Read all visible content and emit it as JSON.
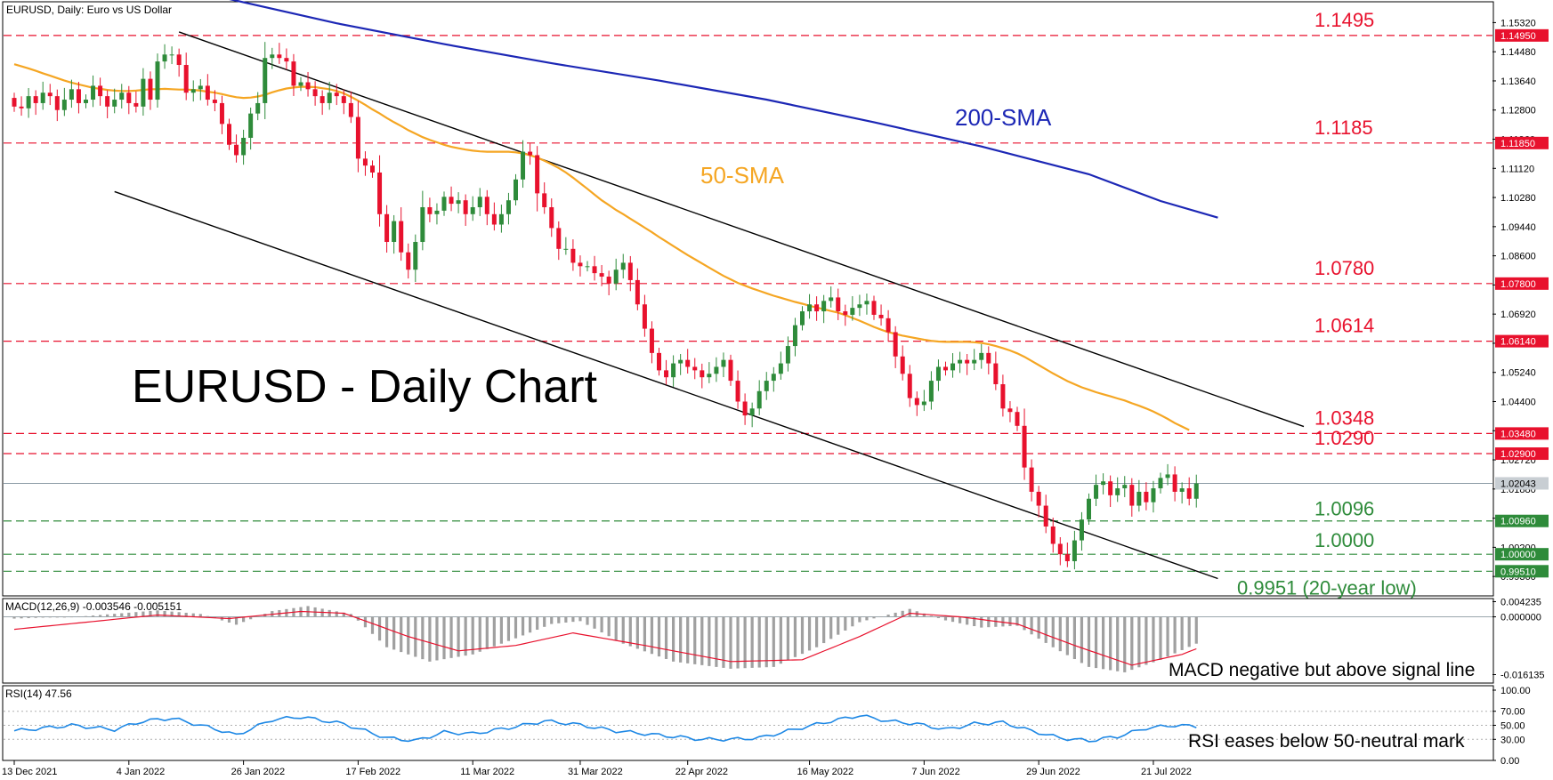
{
  "header": {
    "symbol_line": "EURUSD, Daily:  Euro vs US Dollar"
  },
  "colors": {
    "bull": "#2e8b3a",
    "bear": "#e8112d",
    "sma50": "#f5a623",
    "sma200": "#1c27b5",
    "level_red": "#e8112d",
    "level_green": "#2e8b3a",
    "macd_hist": "#a0a0a0",
    "macd_signal": "#e8112d",
    "rsi": "#1e88e5",
    "text": "#000000"
  },
  "chart_data": [
    {
      "type": "candlestick",
      "panel": "price",
      "title": "EURUSD - Daily Chart",
      "ylim": [
        0.988,
        1.1592
      ],
      "price_ticks": [
        "1.15320",
        "1.14480",
        "1.13640",
        "1.12800",
        "1.11960",
        "1.11120",
        "1.10280",
        "1.09440",
        "1.08600",
        "1.07760",
        "1.06920",
        "1.06080",
        "1.05240",
        "1.04400",
        "1.03560",
        "1.02720",
        "1.01880",
        "1.01040",
        "1.00200",
        "0.99360"
      ],
      "x_ticks": [
        {
          "label": "13 Dec 2021",
          "i": 0
        },
        {
          "label": "4 Jan 2022",
          "i": 16
        },
        {
          "label": "26 Jan 2022",
          "i": 32
        },
        {
          "label": "17 Feb 2022",
          "i": 48
        },
        {
          "label": "11 Mar 2022",
          "i": 64
        },
        {
          "label": "31 Mar 2022",
          "i": 79
        },
        {
          "label": "22 Apr 2022",
          "i": 94
        },
        {
          "label": "16 May 2022",
          "i": 111
        },
        {
          "label": "7 Jun 2022",
          "i": 127
        },
        {
          "label": "29 Jun 2022",
          "i": 143
        },
        {
          "label": "21 Jul 2022",
          "i": 159
        }
      ],
      "candles_close": [
        1.129,
        1.1285,
        1.132,
        1.13,
        1.133,
        1.132,
        1.128,
        1.131,
        1.134,
        1.13,
        1.131,
        1.135,
        1.132,
        1.129,
        1.131,
        1.133,
        1.13,
        1.129,
        1.137,
        1.131,
        1.142,
        1.144,
        1.144,
        1.141,
        1.133,
        1.134,
        1.135,
        1.131,
        1.13,
        1.124,
        1.118,
        1.115,
        1.12,
        1.127,
        1.13,
        1.143,
        1.144,
        1.143,
        1.142,
        1.135,
        1.136,
        1.134,
        1.132,
        1.13,
        1.133,
        1.132,
        1.13,
        1.126,
        1.114,
        1.112,
        1.11,
        1.098,
        1.09,
        1.096,
        1.087,
        1.082,
        1.09,
        1.1,
        1.098,
        1.099,
        1.103,
        1.101,
        1.102,
        1.098,
        1.1,
        1.103,
        1.098,
        1.095,
        1.098,
        1.102,
        1.108,
        1.116,
        1.115,
        1.104,
        1.1,
        1.094,
        1.088,
        1.088,
        1.084,
        1.083,
        1.083,
        1.081,
        1.08,
        1.078,
        1.082,
        1.084,
        1.079,
        1.072,
        1.065,
        1.058,
        1.053,
        1.051,
        1.055,
        1.056,
        1.054,
        1.053,
        1.051,
        1.052,
        1.054,
        1.056,
        1.05,
        1.044,
        1.04,
        1.042,
        1.047,
        1.05,
        1.052,
        1.055,
        1.06,
        1.066,
        1.07,
        1.072,
        1.07,
        1.073,
        1.074,
        1.07,
        1.069,
        1.071,
        1.072,
        1.073,
        1.069,
        1.068,
        1.064,
        1.057,
        1.052,
        1.045,
        1.043,
        1.044,
        1.05,
        1.054,
        1.053,
        1.055,
        1.056,
        1.055,
        1.056,
        1.058,
        1.055,
        1.049,
        1.042,
        1.041,
        1.037,
        1.025,
        1.018,
        1.014,
        1.008,
        1.003,
        1.0,
        0.998,
        1.004,
        1.01,
        1.016,
        1.02,
        1.021,
        1.017,
        1.019,
        1.02,
        1.014,
        1.018,
        1.015,
        1.019,
        1.022,
        1.023,
        1.018,
        1.019,
        1.016,
        1.0204
      ],
      "sma50_y": [
        1.1412,
        1.1406,
        1.14,
        1.1393,
        1.1386,
        1.1379,
        1.1372,
        1.1365,
        1.1359,
        1.1354,
        1.1349,
        1.1344,
        1.1341,
        1.1338,
        1.1336,
        1.1335,
        1.1335,
        1.1336,
        1.1338,
        1.134,
        1.134,
        1.1341,
        1.134,
        1.1339,
        1.1339,
        1.1338,
        1.1336,
        1.1333,
        1.133,
        1.1326,
        1.1321,
        1.1317,
        1.1315,
        1.1316,
        1.1319,
        1.1324,
        1.1331,
        1.1337,
        1.1342,
        1.1345,
        1.1347,
        1.1347,
        1.1346,
        1.1343,
        1.134,
        1.1335,
        1.1328,
        1.1318,
        1.1307,
        1.1295,
        1.1282,
        1.127,
        1.1257,
        1.1245,
        1.1234,
        1.1222,
        1.1212,
        1.1202,
        1.1194,
        1.1187,
        1.118,
        1.1174,
        1.117,
        1.1166,
        1.1163,
        1.1161,
        1.116,
        1.116,
        1.116,
        1.116,
        1.1158,
        1.1155,
        1.115,
        1.1143,
        1.1134,
        1.1124,
        1.1113,
        1.11,
        1.1085,
        1.1069,
        1.1053,
        1.1036,
        1.102,
        1.1006,
        1.0992,
        1.098,
        1.0967,
        1.0954,
        1.0941,
        1.0928,
        1.0914,
        1.0901,
        1.0888,
        1.0875,
        1.0862,
        1.085,
        1.0838,
        1.0826,
        1.0814,
        1.0802,
        1.0792,
        1.0782,
        1.0774,
        1.0766,
        1.0759,
        1.0752,
        1.0745,
        1.0739,
        1.0733,
        1.0727,
        1.0722,
        1.0716,
        1.0711,
        1.0706,
        1.0701,
        1.0696,
        1.0689,
        1.0681,
        1.0673,
        1.0664,
        1.0655,
        1.0647,
        1.064,
        1.0635,
        1.063,
        1.0626,
        1.0622,
        1.0618,
        1.0615,
        1.0613,
        1.0612,
        1.0612,
        1.0612,
        1.0612,
        1.0611,
        1.0609,
        1.0605,
        1.06,
        1.0594,
        1.0587,
        1.0579,
        1.0569,
        1.0557,
        1.0545,
        1.0533,
        1.0521,
        1.051,
        1.0499,
        1.049,
        1.0481,
        1.0474,
        1.0467,
        1.0461,
        1.0455,
        1.0449,
        1.0443,
        1.0435,
        1.0428,
        1.042,
        1.0411,
        1.0401,
        1.039,
        1.0378,
        1.0368,
        1.0358
      ],
      "sma200_points": [
        {
          "i": 30,
          "y": 1.16
        },
        {
          "i": 45,
          "y": 1.153
        },
        {
          "i": 60,
          "y": 1.147
        },
        {
          "i": 75,
          "y": 1.1415
        },
        {
          "i": 90,
          "y": 1.1365
        },
        {
          "i": 105,
          "y": 1.131
        },
        {
          "i": 120,
          "y": 1.1245
        },
        {
          "i": 135,
          "y": 1.1175
        },
        {
          "i": 150,
          "y": 1.1095
        },
        {
          "i": 160,
          "y": 1.1018
        },
        {
          "i": 168,
          "y": 1.097
        }
      ],
      "channel_upper": [
        {
          "i": 23,
          "y": 1.1505
        },
        {
          "i": 180,
          "y": 1.0368
        }
      ],
      "channel_lower": [
        {
          "i": 14,
          "y": 1.1045
        },
        {
          "i": 168,
          "y": 0.993
        }
      ],
      "levels": [
        {
          "value": 1.1495,
          "label": "1.1495",
          "tag": "1.14950",
          "color": "red"
        },
        {
          "value": 1.1185,
          "label": "1.1185",
          "tag": "1.11850",
          "color": "red"
        },
        {
          "value": 1.078,
          "label": "1.0780",
          "tag": "1.07800",
          "color": "red"
        },
        {
          "value": 1.0614,
          "label": "1.0614",
          "tag": "1.06140",
          "color": "red"
        },
        {
          "value": 1.0348,
          "label": "1.0348",
          "tag": "1.03480",
          "color": "red"
        },
        {
          "value": 1.029,
          "label": "1.0290",
          "tag": "1.02900",
          "color": "red"
        },
        {
          "value": 1.0096,
          "label": "1.0096",
          "tag": "1.00960",
          "color": "green"
        },
        {
          "value": 1.0,
          "label": "1.0000",
          "tag": "1.00000",
          "color": "green"
        },
        {
          "value": 0.9951,
          "label": "0.9951 (20-year low)",
          "tag": "0.99510",
          "color": "green"
        }
      ],
      "current_price": {
        "value": 1.02043,
        "tag": "1.02043"
      },
      "annotations": {
        "sma50": "50-SMA",
        "sma200": "200-SMA"
      }
    },
    {
      "type": "histogram",
      "panel": "macd",
      "title": "MACD(12,26,9) -0.003546 -0.005151",
      "ylim": [
        -0.0185,
        0.0051
      ],
      "ticks": [
        "0.004235",
        "0.000000",
        "-0.016135"
      ],
      "histogram_anchors": [
        {
          "i": 0,
          "v": -0.0005
        },
        {
          "i": 10,
          "v": 0.0002
        },
        {
          "i": 20,
          "v": 0.0018
        },
        {
          "i": 26,
          "v": 0.0008
        },
        {
          "i": 31,
          "v": -0.0022
        },
        {
          "i": 36,
          "v": 0.0016
        },
        {
          "i": 41,
          "v": 0.003
        },
        {
          "i": 47,
          "v": 0.0008
        },
        {
          "i": 52,
          "v": -0.0085
        },
        {
          "i": 58,
          "v": -0.0125
        },
        {
          "i": 64,
          "v": -0.0105
        },
        {
          "i": 70,
          "v": -0.006
        },
        {
          "i": 75,
          "v": -0.002
        },
        {
          "i": 79,
          "v": -0.0012
        },
        {
          "i": 85,
          "v": -0.0075
        },
        {
          "i": 92,
          "v": -0.0125
        },
        {
          "i": 100,
          "v": -0.0145
        },
        {
          "i": 106,
          "v": -0.014
        },
        {
          "i": 112,
          "v": -0.0085
        },
        {
          "i": 118,
          "v": -0.0015
        },
        {
          "i": 125,
          "v": 0.0022
        },
        {
          "i": 130,
          "v": -0.001
        },
        {
          "i": 135,
          "v": -0.003
        },
        {
          "i": 140,
          "v": -0.0025
        },
        {
          "i": 145,
          "v": -0.0085
        },
        {
          "i": 150,
          "v": -0.014
        },
        {
          "i": 155,
          "v": -0.0155
        },
        {
          "i": 160,
          "v": -0.012
        },
        {
          "i": 165,
          "v": -0.0075
        },
        {
          "i": 170,
          "v": -0.0035
        }
      ],
      "signal_anchors": [
        {
          "i": 0,
          "v": -0.0035
        },
        {
          "i": 10,
          "v": -0.0015
        },
        {
          "i": 20,
          "v": 0.0005
        },
        {
          "i": 30,
          "v": -0.0005
        },
        {
          "i": 40,
          "v": 0.0015
        },
        {
          "i": 46,
          "v": 0.001
        },
        {
          "i": 55,
          "v": -0.0055
        },
        {
          "i": 62,
          "v": -0.0095
        },
        {
          "i": 70,
          "v": -0.008
        },
        {
          "i": 78,
          "v": -0.0045
        },
        {
          "i": 88,
          "v": -0.008
        },
        {
          "i": 100,
          "v": -0.0125
        },
        {
          "i": 110,
          "v": -0.012
        },
        {
          "i": 118,
          "v": -0.0055
        },
        {
          "i": 125,
          "v": 0.001
        },
        {
          "i": 132,
          "v": 0.0
        },
        {
          "i": 140,
          "v": -0.002
        },
        {
          "i": 148,
          "v": -0.008
        },
        {
          "i": 156,
          "v": -0.0135
        },
        {
          "i": 163,
          "v": -0.0105
        },
        {
          "i": 170,
          "v": -0.005
        }
      ],
      "note": "MACD negative but above signal line"
    },
    {
      "type": "line",
      "panel": "rsi",
      "title": "RSI(14) 47.56",
      "ylim": [
        0,
        100
      ],
      "ticks": [
        "100.00",
        "70.00",
        "50.00",
        "30.00",
        "0.00"
      ],
      "rsi_anchors": [
        {
          "i": 0,
          "v": 42
        },
        {
          "i": 8,
          "v": 50
        },
        {
          "i": 14,
          "v": 44
        },
        {
          "i": 18,
          "v": 56
        },
        {
          "i": 22,
          "v": 60
        },
        {
          "i": 28,
          "v": 45
        },
        {
          "i": 31,
          "v": 36
        },
        {
          "i": 36,
          "v": 58
        },
        {
          "i": 40,
          "v": 62
        },
        {
          "i": 46,
          "v": 52
        },
        {
          "i": 52,
          "v": 32
        },
        {
          "i": 56,
          "v": 28
        },
        {
          "i": 60,
          "v": 40
        },
        {
          "i": 64,
          "v": 38
        },
        {
          "i": 70,
          "v": 48
        },
        {
          "i": 74,
          "v": 56
        },
        {
          "i": 78,
          "v": 52
        },
        {
          "i": 84,
          "v": 42
        },
        {
          "i": 90,
          "v": 36
        },
        {
          "i": 96,
          "v": 30
        },
        {
          "i": 100,
          "v": 30
        },
        {
          "i": 104,
          "v": 32
        },
        {
          "i": 108,
          "v": 42
        },
        {
          "i": 114,
          "v": 56
        },
        {
          "i": 118,
          "v": 64
        },
        {
          "i": 122,
          "v": 56
        },
        {
          "i": 126,
          "v": 52
        },
        {
          "i": 130,
          "v": 44
        },
        {
          "i": 134,
          "v": 52
        },
        {
          "i": 138,
          "v": 54
        },
        {
          "i": 142,
          "v": 42
        },
        {
          "i": 146,
          "v": 32
        },
        {
          "i": 150,
          "v": 28
        },
        {
          "i": 154,
          "v": 34
        },
        {
          "i": 158,
          "v": 46
        },
        {
          "i": 162,
          "v": 50
        },
        {
          "i": 166,
          "v": 48
        },
        {
          "i": 170,
          "v": 47.56
        }
      ],
      "note": "RSI eases below 50-neutral mark"
    }
  ]
}
